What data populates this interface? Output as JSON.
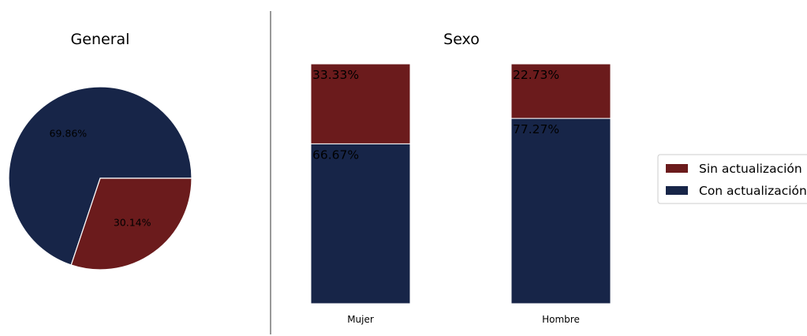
{
  "colors": {
    "sin_actualizacion": "#6b1b1c",
    "con_actualizacion": "#172548",
    "divider": "#999999"
  },
  "chart_data": [
    {
      "type": "pie",
      "title": "General",
      "slices": [
        {
          "label": "Con actualización",
          "value": 69.86,
          "display": "69.86%"
        },
        {
          "label": "Sin actualización",
          "value": 30.14,
          "display": "30.14%"
        }
      ]
    },
    {
      "type": "bar",
      "stacked": true,
      "title": "Sexo",
      "categories": [
        "Mujer",
        "Hombre"
      ],
      "series": [
        {
          "name": "Con actualización",
          "values": [
            66.67,
            77.27
          ],
          "display": [
            "66.67%",
            "77.27%"
          ]
        },
        {
          "name": "Sin actualización",
          "values": [
            33.33,
            22.73
          ],
          "display": [
            "33.33%",
            "22.73%"
          ]
        }
      ],
      "ylim": [
        0,
        100
      ]
    }
  ],
  "legend": {
    "placement": "right",
    "items": [
      "Sin actualización",
      "Con actualización"
    ]
  }
}
